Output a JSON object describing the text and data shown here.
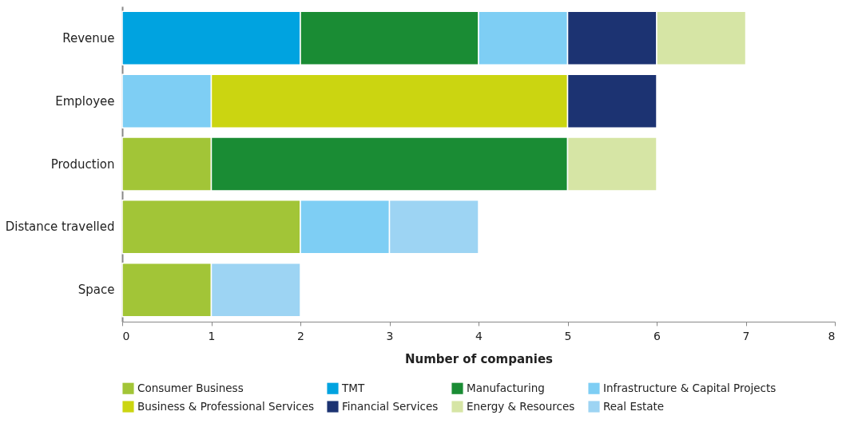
{
  "chart_data": {
    "type": "bar",
    "orientation": "horizontal",
    "stacked": true,
    "xlabel": "Number of companies",
    "categories": [
      "Revenue",
      "Employee",
      "Production",
      "Distance travelled",
      "Space"
    ],
    "series": [
      {
        "name": "Consumer Business",
        "color": "#a2c537",
        "values": [
          null,
          null,
          1,
          2,
          1
        ]
      },
      {
        "name": "TMT",
        "color": "#00a3e0",
        "values": [
          2,
          null,
          null,
          null,
          null
        ]
      },
      {
        "name": "Manufacturing",
        "color": "#1a8c34",
        "values": [
          2,
          null,
          4,
          null,
          null
        ]
      },
      {
        "name": "Infrastructure & Capital Projects",
        "color": "#7ecef4",
        "values": [
          1,
          1,
          null,
          1,
          null
        ]
      },
      {
        "name": "Business & Professional Services",
        "color": "#cbd511",
        "values": [
          null,
          4,
          null,
          null,
          null
        ]
      },
      {
        "name": "Financial Services",
        "color": "#1c3372",
        "values": [
          1,
          1,
          null,
          null,
          null
        ]
      },
      {
        "name": "Energy & Resources",
        "color": "#d6e5a5",
        "values": [
          1,
          null,
          1,
          null,
          null
        ]
      },
      {
        "name": "Real Estate",
        "color": "#9dd4f3",
        "values": [
          null,
          null,
          null,
          1,
          1
        ]
      }
    ],
    "xlim": [
      0,
      8
    ],
    "xticks": [
      0,
      1,
      2,
      3,
      4,
      5,
      6,
      7,
      8
    ],
    "grid": false,
    "legend": "bottom"
  }
}
